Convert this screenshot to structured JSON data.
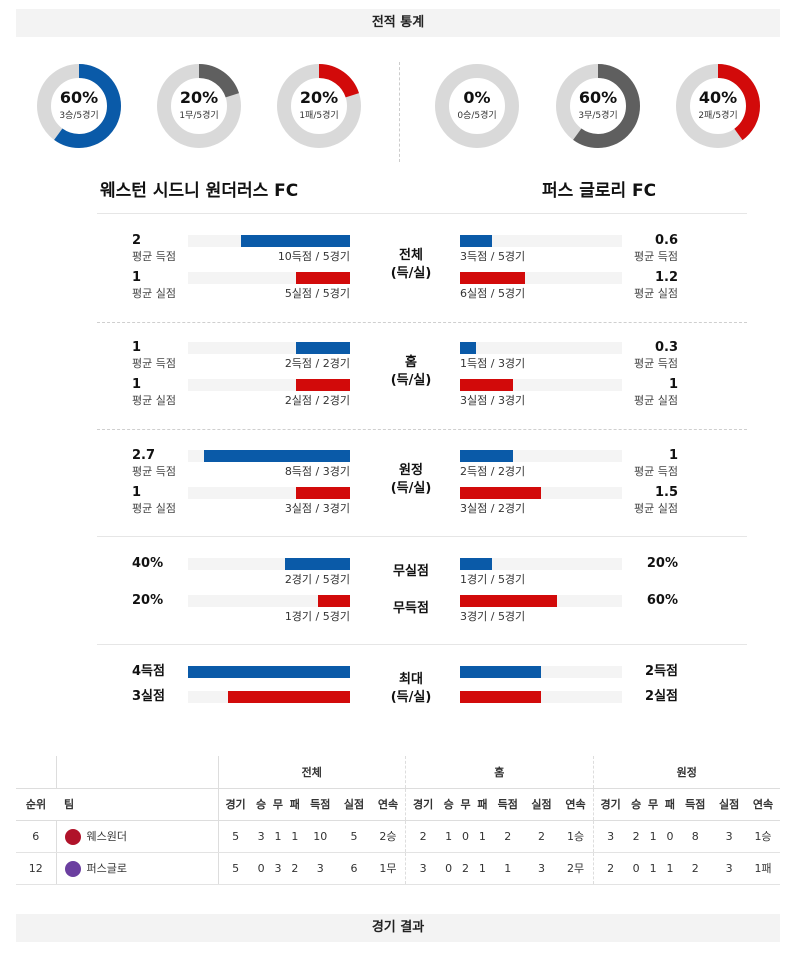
{
  "headers": {
    "stats": "전적 통계",
    "results": "경기 결과"
  },
  "colors": {
    "blue": "#0a5aa8",
    "red": "#d20a0a",
    "dark": "#5f5f5f",
    "track": "#d9d9d9"
  },
  "home_team": {
    "name": "웨스턴 시드니 원더러스 FC",
    "donuts": [
      {
        "pct": "60%",
        "sub": "3승/5경기",
        "value": 0.6,
        "color": "#0a5aa8"
      },
      {
        "pct": "20%",
        "sub": "1무/5경기",
        "value": 0.2,
        "color": "#5f5f5f"
      },
      {
        "pct": "20%",
        "sub": "1패/5경기",
        "value": 0.2,
        "color": "#d20a0a"
      }
    ]
  },
  "away_team": {
    "name": "퍼스 글로리 FC",
    "donuts": [
      {
        "pct": "0%",
        "sub": "0승/5경기",
        "value": 0,
        "color": "#0a5aa8"
      },
      {
        "pct": "60%",
        "sub": "3무/5경기",
        "value": 0.6,
        "color": "#5f5f5f"
      },
      {
        "pct": "40%",
        "sub": "2패/5경기",
        "value": 0.4,
        "color": "#d20a0a"
      }
    ]
  },
  "groups": [
    {
      "title": "전체\n(득/실)",
      "left": [
        {
          "val": "2",
          "lbl": "평균 득점",
          "bar": "10득점 / 5경기",
          "frac": 0.675
        },
        {
          "val": "1",
          "lbl": "평균 실점",
          "bar": "5실점 / 5경기",
          "frac": 0.335
        }
      ],
      "right": [
        {
          "val": "0.6",
          "lbl": "평균 득점",
          "bar": "3득점 / 5경기",
          "frac": 0.2
        },
        {
          "val": "1.2",
          "lbl": "평균 실점",
          "bar": "6실점 / 5경기",
          "frac": 0.4
        }
      ]
    },
    {
      "title": "홈\n(득/실)",
      "left": [
        {
          "val": "1",
          "lbl": "평균 득점",
          "bar": "2득점 / 2경기",
          "frac": 0.335
        },
        {
          "val": "1",
          "lbl": "평균 실점",
          "bar": "2실점 / 2경기",
          "frac": 0.335
        }
      ],
      "right": [
        {
          "val": "0.3",
          "lbl": "평균 득점",
          "bar": "1득점 / 3경기",
          "frac": 0.1
        },
        {
          "val": "1",
          "lbl": "평균 실점",
          "bar": "3실점 / 3경기",
          "frac": 0.33
        }
      ]
    },
    {
      "title": "원정\n(득/실)",
      "left": [
        {
          "val": "2.7",
          "lbl": "평균 득점",
          "bar": "8득점 / 3경기",
          "frac": 0.9
        },
        {
          "val": "1",
          "lbl": "평균 실점",
          "bar": "3실점 / 3경기",
          "frac": 0.335
        }
      ],
      "right": [
        {
          "val": "1",
          "lbl": "평균 득점",
          "bar": "2득점 / 2경기",
          "frac": 0.33
        },
        {
          "val": "1.5",
          "lbl": "평균 실점",
          "bar": "3실점 / 2경기",
          "frac": 0.5
        }
      ]
    }
  ],
  "clean": {
    "labels": [
      "무실점",
      "무득점"
    ],
    "left": [
      {
        "val": "40%",
        "bar": "2경기 / 5경기",
        "frac": 0.4
      },
      {
        "val": "20%",
        "bar": "1경기 / 5경기",
        "frac": 0.2
      }
    ],
    "right": [
      {
        "val": "20%",
        "bar": "1경기 / 5경기",
        "frac": 0.2
      },
      {
        "val": "60%",
        "bar": "3경기 / 5경기",
        "frac": 0.6
      }
    ]
  },
  "max": {
    "title": "최대\n(득/실)",
    "left": [
      {
        "val": "4득점",
        "frac": 1.0
      },
      {
        "val": "3실점",
        "frac": 0.75
      }
    ],
    "right": [
      {
        "val": "2득점",
        "frac": 0.5
      },
      {
        "val": "2실점",
        "frac": 0.5
      }
    ]
  },
  "standings": {
    "group_headers": [
      "전체",
      "홈",
      "원정"
    ],
    "col_rank": "순위",
    "col_team": "팀",
    "cols": [
      "경기",
      "승",
      "무",
      "패",
      "득점",
      "실점",
      "연속"
    ],
    "rows": [
      {
        "rank": "6",
        "team": "웨스원더",
        "logo_color": "#b0132a",
        "all": [
          "5",
          "3",
          "1",
          "1",
          "10",
          "5",
          "2승"
        ],
        "home": [
          "2",
          "1",
          "0",
          "1",
          "2",
          "2",
          "1승"
        ],
        "away": [
          "3",
          "2",
          "1",
          "0",
          "8",
          "3",
          "1승"
        ]
      },
      {
        "rank": "12",
        "team": "퍼스글로",
        "logo_color": "#6b3fa0",
        "all": [
          "5",
          "0",
          "3",
          "2",
          "3",
          "6",
          "1무"
        ],
        "home": [
          "3",
          "0",
          "2",
          "1",
          "1",
          "3",
          "2무"
        ],
        "away": [
          "2",
          "0",
          "1",
          "1",
          "2",
          "3",
          "1패"
        ]
      }
    ]
  }
}
